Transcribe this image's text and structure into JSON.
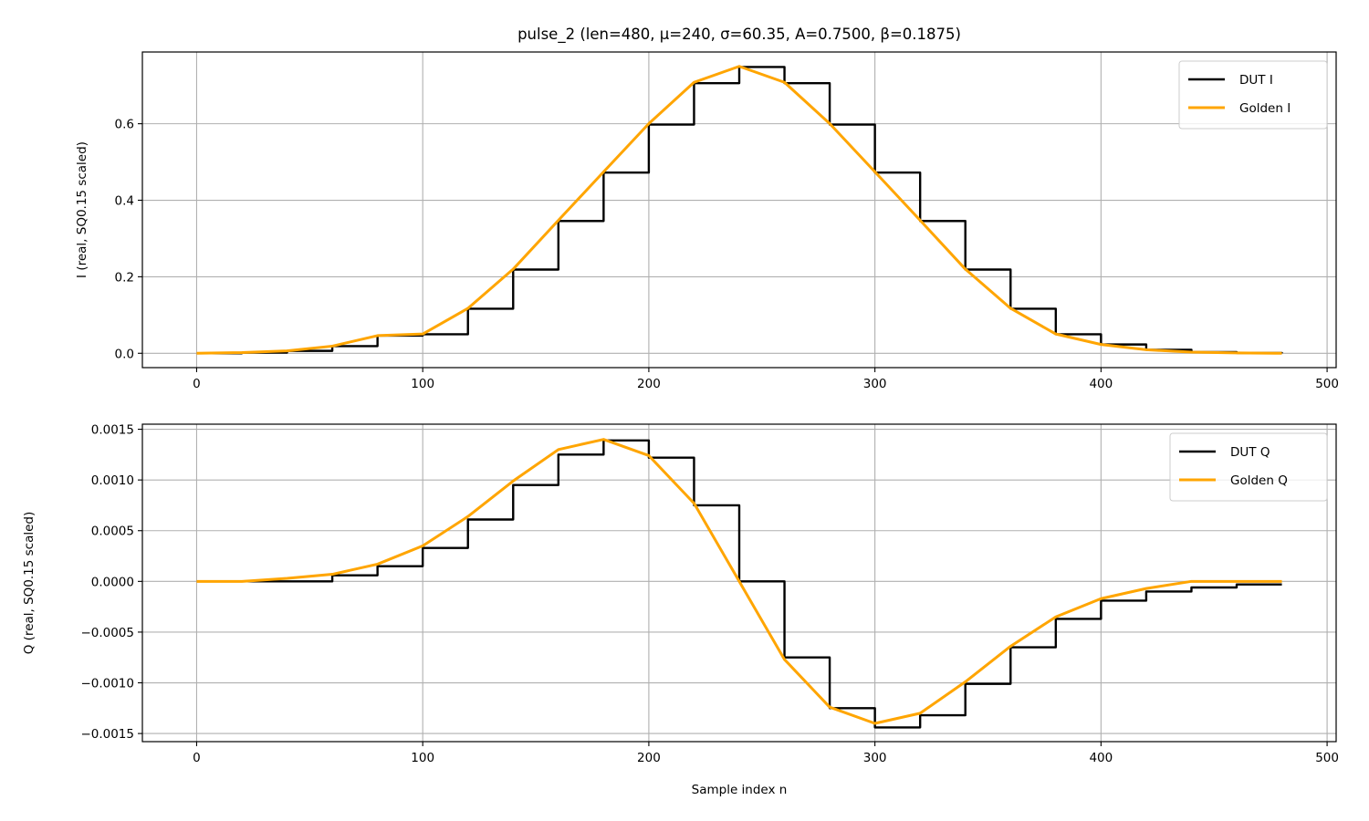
{
  "figure": {
    "title": "pulse_2  (len=480, μ=240, σ=60.35, A=0.7500, β=0.1875)"
  },
  "chart_data": [
    {
      "type": "line",
      "title": "pulse_2  (len=480, μ=240, σ=60.35, A=0.7500, β=0.1875)",
      "xlabel": "",
      "ylabel": "I (real, SQ0.15 scaled)",
      "xlim": [
        -24,
        504
      ],
      "ylim": [
        -0.0375,
        0.7875
      ],
      "xticks": [
        0,
        100,
        200,
        300,
        400,
        500
      ],
      "xtick_labels": [
        "0",
        "100",
        "200",
        "300",
        "400",
        "500"
      ],
      "yticks": [
        0.0,
        0.2,
        0.4,
        0.6
      ],
      "ytick_labels": [
        "0.0",
        "0.2",
        "0.4",
        "0.6"
      ],
      "grid": true,
      "legend_position": "top-right",
      "pulse": {
        "len": 480,
        "mu": 240,
        "sigma": 60.35,
        "A": 0.75,
        "beta": 0.1875
      },
      "series": [
        {
          "name": "DUT I",
          "color": "#000000",
          "style": "steps",
          "x": [
            0,
            20,
            40,
            60,
            80,
            100,
            120,
            140,
            160,
            180,
            200,
            220,
            240,
            260,
            280,
            300,
            320,
            340,
            360,
            380,
            400,
            420,
            440,
            460,
            480
          ],
          "y": [
            0.0,
            0.0018,
            0.0063,
            0.0187,
            0.0462,
            0.0496,
            0.1165,
            0.2188,
            0.3458,
            0.4722,
            0.5978,
            0.7061,
            0.7482,
            0.7061,
            0.5978,
            0.4722,
            0.3458,
            0.2188,
            0.1165,
            0.0496,
            0.023,
            0.0092,
            0.0031,
            0.0009,
            0.0
          ]
        },
        {
          "name": "Golden I",
          "color": "#ffa500",
          "style": "line",
          "x": [
            0,
            20,
            40,
            60,
            80,
            100,
            120,
            140,
            160,
            180,
            200,
            220,
            240,
            260,
            280,
            300,
            320,
            340,
            360,
            380,
            400,
            420,
            440,
            460,
            480
          ],
          "y": [
            0.0,
            0.0018,
            0.0063,
            0.0187,
            0.0462,
            0.0504,
            0.1175,
            0.2199,
            0.3475,
            0.4742,
            0.6003,
            0.7082,
            0.75,
            0.7082,
            0.6003,
            0.4742,
            0.3475,
            0.2199,
            0.1175,
            0.0504,
            0.023,
            0.0092,
            0.0031,
            0.0009,
            0.0
          ]
        }
      ]
    },
    {
      "type": "line",
      "title": "",
      "xlabel": "Sample index n",
      "ylabel": "Q (real, SQ0.15 scaled)",
      "xlim": [
        -24,
        504
      ],
      "ylim": [
        -0.00158,
        0.00155
      ],
      "xticks": [
        0,
        100,
        200,
        300,
        400,
        500
      ],
      "xtick_labels": [
        "0",
        "100",
        "200",
        "300",
        "400",
        "500"
      ],
      "yticks": [
        -0.0015,
        -0.001,
        -0.0005,
        0.0,
        0.0005,
        0.001,
        0.0015
      ],
      "ytick_labels": [
        "−0.0015",
        "−0.0010",
        "−0.0005",
        "0.0000",
        "0.0005",
        "0.0010",
        "0.0015"
      ],
      "grid": true,
      "legend_position": "top-right",
      "series": [
        {
          "name": "DUT Q",
          "color": "#000000",
          "style": "steps",
          "x": [
            0,
            20,
            40,
            60,
            80,
            100,
            120,
            140,
            160,
            180,
            200,
            220,
            240,
            260,
            280,
            300,
            320,
            340,
            360,
            380,
            400,
            420,
            440,
            460,
            480
          ],
          "y": [
            0.0,
            0.0,
            0.0,
            6e-05,
            0.00015,
            0.00033,
            0.00061,
            0.00095,
            0.00125,
            0.00139,
            0.00122,
            0.00075,
            0.0,
            -0.00075,
            -0.00125,
            -0.00144,
            -0.00132,
            -0.00101,
            -0.00065,
            -0.00037,
            -0.00019,
            -0.0001,
            -6e-05,
            -3e-05,
            -3e-05
          ]
        },
        {
          "name": "Golden Q",
          "color": "#ffa500",
          "style": "line",
          "x": [
            0,
            20,
            40,
            60,
            80,
            100,
            120,
            140,
            160,
            180,
            200,
            220,
            240,
            260,
            280,
            300,
            320,
            340,
            360,
            380,
            400,
            420,
            440,
            460,
            480
          ],
          "y": [
            0.0,
            0.0,
            3e-05,
            7e-05,
            0.00017,
            0.00035,
            0.00064,
            0.00099,
            0.0013,
            0.0014,
            0.00124,
            0.00077,
            0.0,
            -0.00077,
            -0.00124,
            -0.0014,
            -0.0013,
            -0.00099,
            -0.00064,
            -0.00035,
            -0.00017,
            -7e-05,
            0.0,
            0.0,
            0.0
          ]
        }
      ]
    }
  ]
}
